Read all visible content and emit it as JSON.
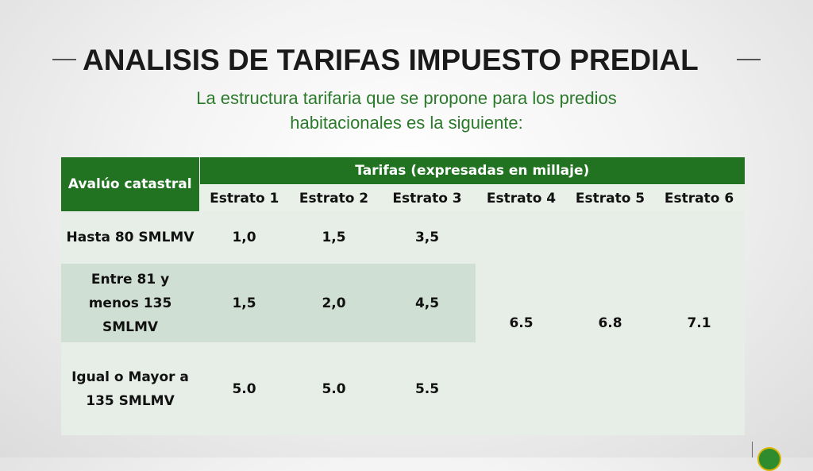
{
  "slide": {
    "title": "ANALISIS DE TARIFAS IMPUESTO PREDIAL",
    "subtitle_lines": [
      "La estructura tarifaria que se propone para los predios",
      "habitacionales es la siguiente:"
    ],
    "colors": {
      "accent_green": "#217321",
      "subtitle_green": "#2b7a2b"
    }
  },
  "table": {
    "header_avaluo": "Avalúo catastral",
    "header_tarifas": "Tarifas (expresadas en millaje)",
    "estratos": [
      "Estrato 1",
      "Estrato 2",
      "Estrato 3",
      "Estrato 4",
      "Estrato 5",
      "Estrato 6"
    ],
    "rows": [
      {
        "label": "Hasta 80 SMLMV",
        "values": [
          "1,0",
          "1,5",
          "3,5"
        ]
      },
      {
        "label": "Entre 81 y menos 135 SMLMV",
        "values": [
          "1,5",
          "2,0",
          "4,5"
        ]
      },
      {
        "label": "Igual o Mayor a 135 SMLMV",
        "values": [
          "5.0",
          "5.0",
          "5.5"
        ]
      }
    ],
    "merged_values": [
      "6.5",
      "6.8",
      "7.1"
    ]
  }
}
